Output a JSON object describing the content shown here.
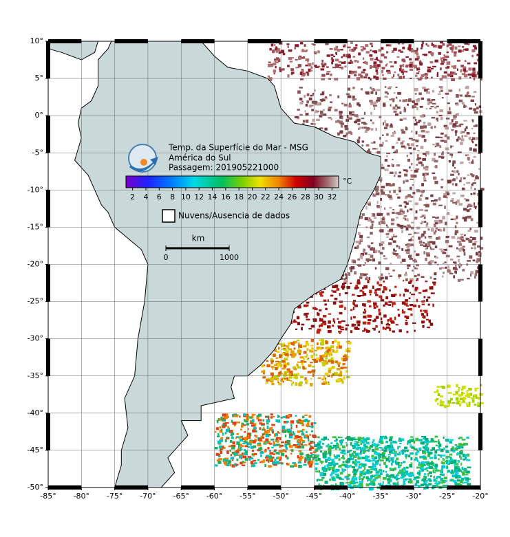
{
  "map": {
    "xlim": [
      -85,
      -20
    ],
    "ylim": [
      -50,
      10
    ],
    "xticks": [
      {
        "value": -85,
        "label": "-85°"
      },
      {
        "value": -80,
        "label": "-80°"
      },
      {
        "value": -75,
        "label": "-75°"
      },
      {
        "value": -70,
        "label": "-70°"
      },
      {
        "value": -65,
        "label": "-65°"
      },
      {
        "value": -60,
        "label": "-60°"
      },
      {
        "value": -55,
        "label": "-55°"
      },
      {
        "value": -50,
        "label": "-50°"
      },
      {
        "value": -45,
        "label": "-45°"
      },
      {
        "value": -40,
        "label": "-40°"
      },
      {
        "value": -35,
        "label": "-35°"
      },
      {
        "value": -30,
        "label": "-30°"
      },
      {
        "value": -25,
        "label": "-25°"
      },
      {
        "value": -20,
        "label": "-20°"
      }
    ],
    "yticks": [
      {
        "value": 10,
        "label": "10°"
      },
      {
        "value": 5,
        "label": "5°"
      },
      {
        "value": 0,
        "label": "0°"
      },
      {
        "value": -5,
        "label": "-5°"
      },
      {
        "value": -10,
        "label": "-10°"
      },
      {
        "value": -15,
        "label": "-15°"
      },
      {
        "value": -20,
        "label": "-20°"
      },
      {
        "value": -25,
        "label": "-25°"
      },
      {
        "value": -30,
        "label": "-30°"
      },
      {
        "value": -35,
        "label": "-35°"
      },
      {
        "value": -40,
        "label": "-40°"
      },
      {
        "value": -45,
        "label": "-45°"
      },
      {
        "value": -50,
        "label": "-50°"
      }
    ],
    "grid": true
  },
  "legend": {
    "title": [
      "Temp. da Superfície do Mar - MSG",
      "América do Sul",
      "Passagem: 201905221000"
    ],
    "colorbar": {
      "range": [
        1,
        33
      ],
      "ticks": [
        2,
        4,
        6,
        8,
        10,
        12,
        14,
        16,
        18,
        20,
        22,
        24,
        26,
        28,
        30,
        32
      ],
      "unit": "°C"
    },
    "no_data": "Nuvens/Ausencia de dados"
  },
  "scale_bar": {
    "unit": "km",
    "ticks": [
      0,
      1000
    ]
  }
}
